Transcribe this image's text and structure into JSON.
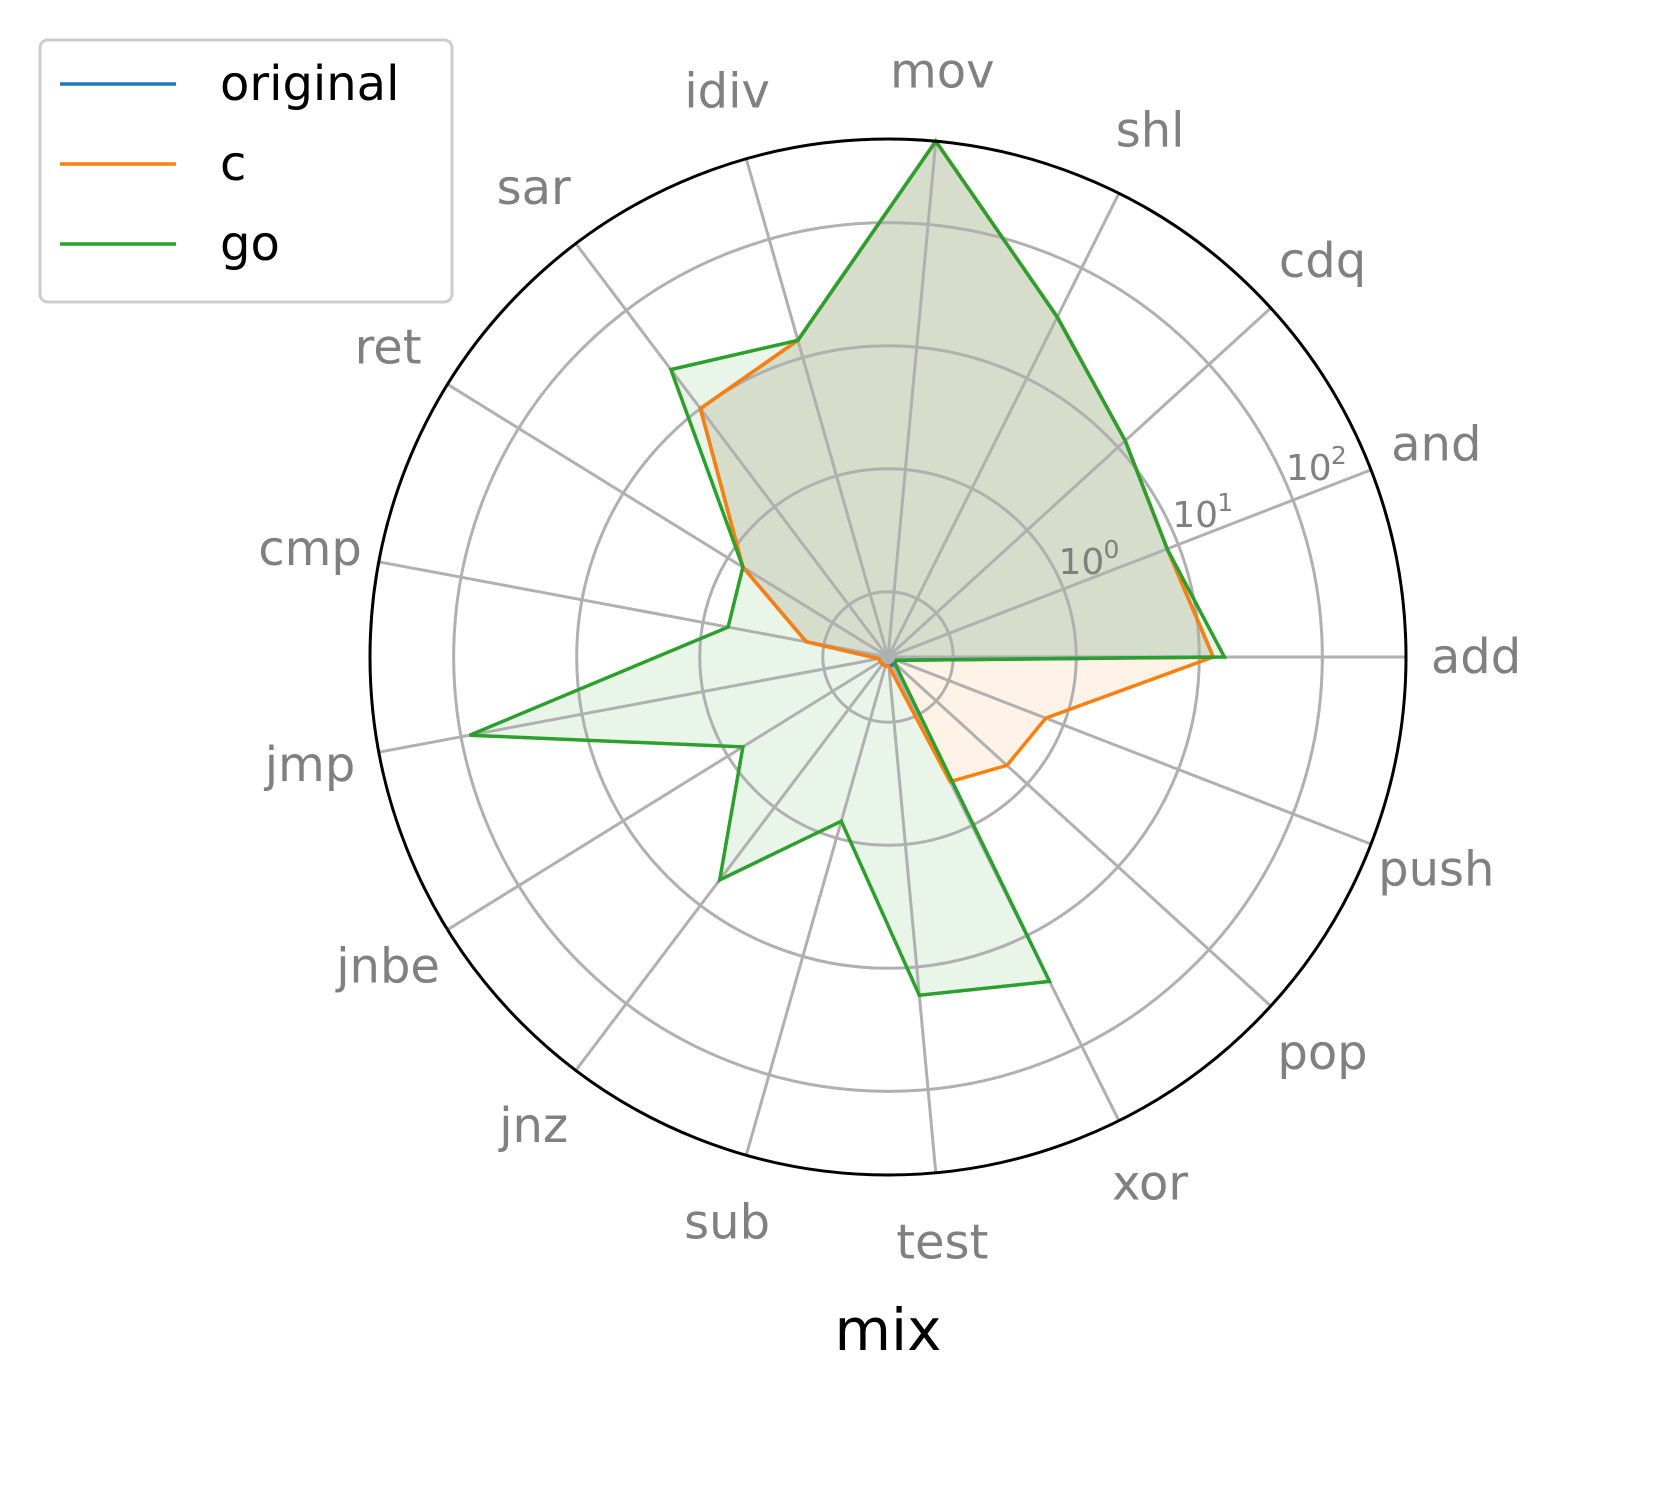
{
  "chart_data": {
    "type": "radar",
    "title": "mix",
    "scale": "log",
    "grid": true,
    "legend_position": "top-left",
    "categories": [
      "add",
      "and",
      "cdq",
      "shl",
      "mov",
      "idiv",
      "sar",
      "ret",
      "cmp",
      "jmp",
      "jnbe",
      "jnz",
      "sub",
      "test",
      "xor",
      "pop",
      "push"
    ],
    "radial_ticks": [
      {
        "base": "10",
        "exp": "0",
        "value": 1
      },
      {
        "base": "10",
        "exp": "1",
        "value": 10
      },
      {
        "base": "10",
        "exp": "2",
        "value": 100
      }
    ],
    "series": [
      {
        "name": "original",
        "color": "#1f77b4",
        "values": [
          13,
          8,
          12,
          36,
          850,
          14,
          10,
          0.72,
          0.14,
          0.035,
          0.035,
          0.035,
          0.035,
          0.035,
          0.035,
          0.035,
          0.035
        ]
      },
      {
        "name": "c",
        "color": "#ff7f0e",
        "values": [
          13,
          8,
          12,
          36,
          950,
          14,
          10,
          0.72,
          0.14,
          0.035,
          0.035,
          0.035,
          0.035,
          0.035,
          0.4,
          0.6,
          0.7
        ]
      },
      {
        "name": "go",
        "color": "#2ca02c",
        "values": [
          16,
          8,
          12,
          36,
          1800,
          14,
          25,
          0.72,
          0.62,
          85,
          0.72,
          5.5,
          0.72,
          17,
          26,
          0.035,
          0.035
        ]
      }
    ]
  }
}
